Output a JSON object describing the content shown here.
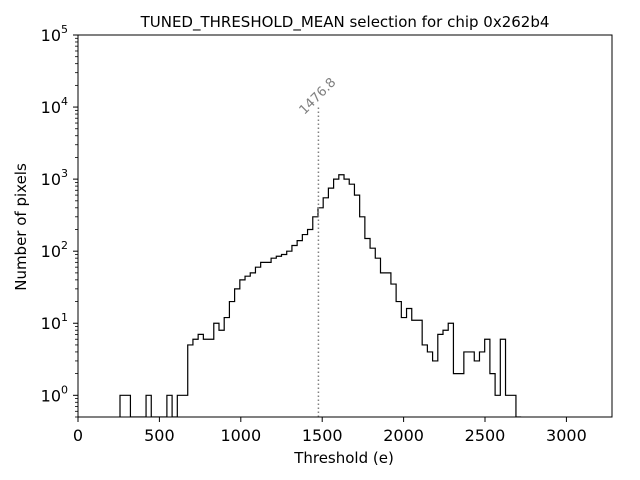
{
  "chart_data": {
    "type": "histogram",
    "title": "TUNED_THRESHOLD_MEAN selection for chip 0x262b4",
    "xlabel": "Threshold (e)",
    "ylabel": "Number of pixels",
    "xlim": [
      0,
      3280
    ],
    "ylim": [
      0.5,
      100000
    ],
    "yscale": "log",
    "x_ticks": [
      0,
      500,
      1000,
      1500,
      2000,
      2500,
      3000
    ],
    "x_tick_labels": [
      "0",
      "500",
      "1000",
      "1500",
      "2000",
      "2500",
      "3000"
    ],
    "y_ticks": [
      1,
      10,
      100,
      1000,
      10000,
      100000
    ],
    "y_tick_labels": [
      {
        "base": "10",
        "exp": "0"
      },
      {
        "base": "10",
        "exp": "1"
      },
      {
        "base": "10",
        "exp": "2"
      },
      {
        "base": "10",
        "exp": "3"
      },
      {
        "base": "10",
        "exp": "4"
      },
      {
        "base": "10",
        "exp": "5"
      }
    ],
    "bin_width": 32,
    "bin_start": 258,
    "bin_counts": [
      1,
      1,
      0,
      0,
      0,
      1,
      0,
      0,
      0,
      1,
      0,
      1,
      1,
      5,
      6,
      7,
      6,
      6,
      10,
      8,
      12,
      20,
      30,
      40,
      45,
      50,
      60,
      70,
      70,
      80,
      85,
      90,
      100,
      120,
      140,
      170,
      200,
      300,
      400,
      550,
      750,
      1000,
      1150,
      1000,
      850,
      600,
      300,
      150,
      110,
      80,
      50,
      50,
      35,
      20,
      12,
      16,
      11,
      11,
      5,
      4,
      3,
      7,
      8,
      10,
      2,
      2,
      4,
      4,
      3,
      4,
      6,
      2,
      1,
      6,
      1,
      1,
      0
    ],
    "vline": {
      "x": 1476.8,
      "ymax": 10000,
      "label": "1476.8"
    }
  }
}
